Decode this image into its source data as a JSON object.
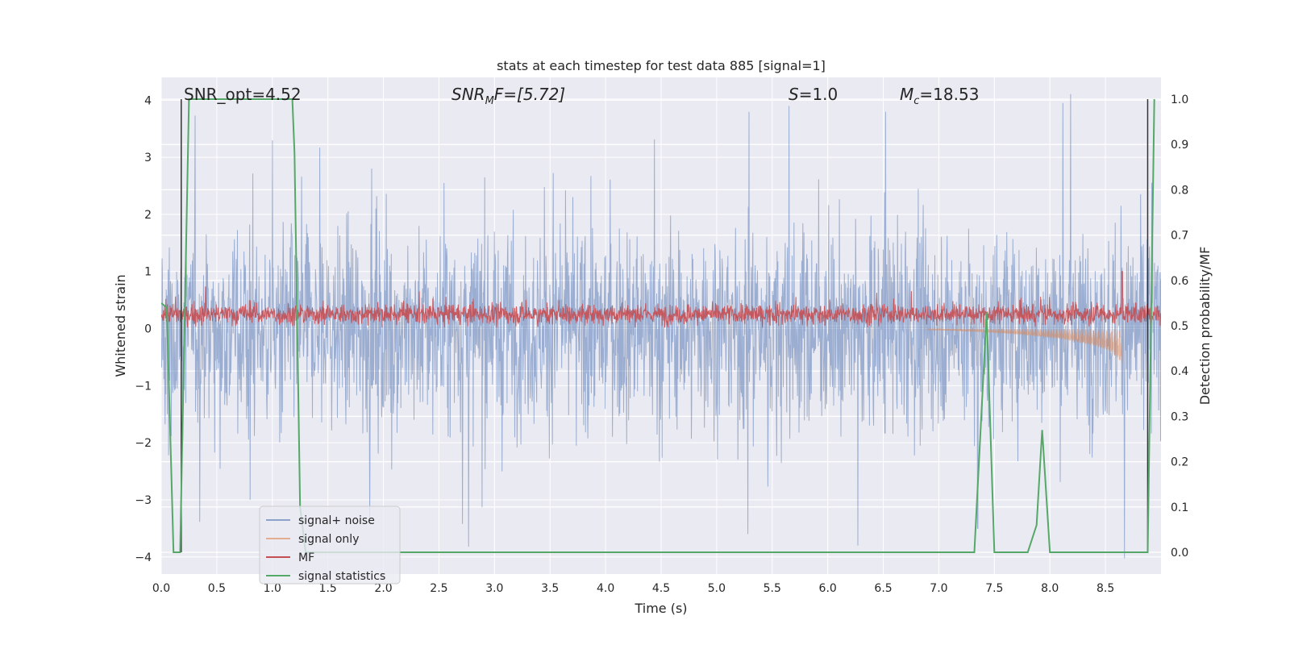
{
  "chart_data": {
    "type": "line",
    "title": "stats at each timestep for test data 885 [signal=1]",
    "xlabel": "Time (s)",
    "ylabel": "Whitened strain",
    "y2label": "Detection probability/MF",
    "xlim": [
      0.0,
      9.0
    ],
    "ylim": [
      -4.3,
      4.4
    ],
    "y2lim": [
      -0.048,
      1.048
    ],
    "x_ticks": [
      "0.0",
      "0.5",
      "1.0",
      "1.5",
      "2.0",
      "2.5",
      "3.0",
      "3.5",
      "4.0",
      "4.5",
      "5.0",
      "5.5",
      "6.0",
      "6.5",
      "7.0",
      "7.5",
      "8.0",
      "8.5"
    ],
    "y_ticks": [
      "4",
      "3",
      "2",
      "1",
      "0",
      "−1",
      "−2",
      "−3",
      "−4"
    ],
    "y2_ticks": [
      "1.0",
      "0.9",
      "0.8",
      "0.7",
      "0.6",
      "0.5",
      "0.4",
      "0.3",
      "0.2",
      "0.1",
      "0.0"
    ],
    "grid": true,
    "legend_placement": "lower-left",
    "annotations": {
      "snr_opt": "SNR_opt=4.52",
      "snr_mf_main": "SNR",
      "snr_mf_sub": "M",
      "snr_mf_rest": "F=[5.72]",
      "s_main": "S",
      "s_rest": "=1.0",
      "mc_main": "M",
      "mc_sub": "c",
      "mc_rest": "=18.53"
    },
    "vertical_markers_x": [
      0.18,
      8.88
    ],
    "series": [
      {
        "name": "signal+ noise",
        "color": "#4c72b0",
        "axis": "left",
        "summary": {
          "typical_range": [
            -2.0,
            2.0
          ],
          "peaks": [
            [
              1.0,
              3.3
            ],
            [
              5.65,
              3.9
            ],
            [
              6.52,
              3.8
            ],
            [
              0.8,
              -3.0
            ],
            [
              6.27,
              -3.8
            ],
            [
              7.35,
              -3.5
            ],
            [
              5.28,
              -3.6
            ]
          ]
        }
      },
      {
        "name": "signal only",
        "color": "#dd8452",
        "axis": "left",
        "summary": {
          "x": [
            6.9,
            7.3,
            7.7,
            8.1,
            8.4,
            8.55,
            8.65
          ],
          "envelope": [
            0.02,
            0.05,
            0.1,
            0.18,
            0.3,
            0.4,
            0.6
          ]
        }
      },
      {
        "name": "MF",
        "color": "#c44e52",
        "axis": "left",
        "summary": {
          "typical_range": [
            0.05,
            0.5
          ],
          "peaks": [
            [
              0.4,
              0.73
            ],
            [
              8.65,
              1.0
            ]
          ]
        }
      },
      {
        "name": "signal statistics",
        "color": "#55a868",
        "axis": "right",
        "x": [
          0.0,
          0.05,
          0.11,
          0.17,
          0.25,
          1.18,
          1.2,
          1.25,
          1.3,
          7.15,
          7.32,
          7.43,
          7.5,
          7.8,
          7.88,
          7.93,
          8.0,
          8.83,
          8.88,
          8.94
        ],
        "y": [
          0.55,
          0.54,
          0.0,
          0.0,
          1.0,
          1.0,
          0.88,
          0.1,
          0.0,
          0.0,
          0.0,
          0.53,
          0.0,
          0.0,
          0.06,
          0.27,
          0.0,
          0.0,
          0.0,
          1.0
        ]
      }
    ],
    "legend": [
      {
        "label": "signal+ noise",
        "color": "#4c72b0"
      },
      {
        "label": "signal only",
        "color": "#dd8452"
      },
      {
        "label": "MF",
        "color": "#c44e52"
      },
      {
        "label": "signal statistics",
        "color": "#55a868"
      }
    ]
  }
}
